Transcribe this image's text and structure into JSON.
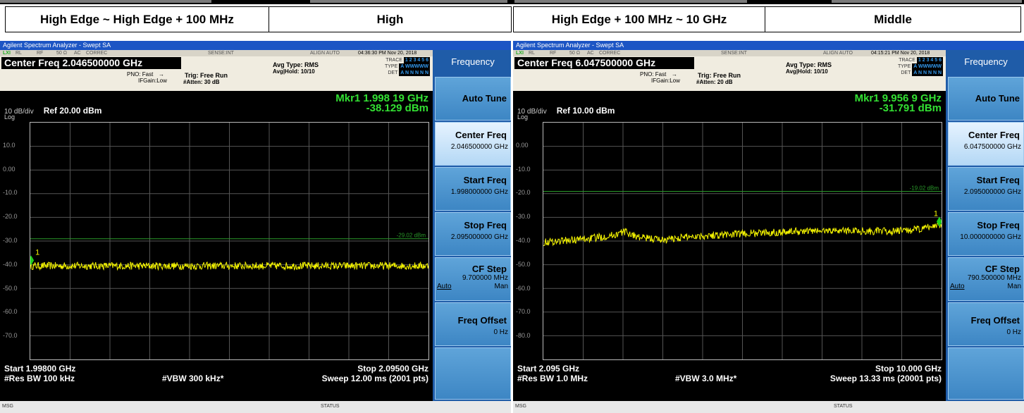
{
  "headers": {
    "left_range": "High Edge ~ High Edge + 100 MHz",
    "left_channel": "High",
    "right_range": "High Edge + 100 MHz ~ 10 GHz",
    "right_channel": "Middle"
  },
  "panels": [
    {
      "window_title": "Agilent Spectrum Analyzer - Swept SA",
      "top_row": {
        "rl": "RL",
        "rf": "RF",
        "ohm": "50 Ω",
        "ac": "AC",
        "correc": "CORREC",
        "sense": "SENSE:INT",
        "align": "ALIGN AUTO",
        "datetime": "04:36:30 PM Nov 20, 2018"
      },
      "center_freq": "Center Freq 2.046500000 GHz",
      "pno": "PNO: Fast",
      "ifgain": "IFGain:Low",
      "trig": "Trig: Free Run",
      "atten": "#Atten: 30 dB",
      "avg_type": "Avg Type: RMS",
      "avg_hold": "Avg|Hold: 10/10",
      "trace_row": {
        "trace": "TRACE",
        "type": "TYPE",
        "det": "DET",
        "trace_val": "1 2 3 4 5 6",
        "type_val": "A WWWWW",
        "det_val": "A N N N N N"
      },
      "marker_freq": "Mkr1 1.998 19 GHz",
      "marker_amp": "-38.129 dBm",
      "scale": "10 dB/div",
      "log": "Log",
      "ref": "Ref 20.00 dBm",
      "y_ticks": [
        "10.0",
        "0.00",
        "-10.0",
        "-20.0",
        "-30.0",
        "-40.0",
        "-50.0",
        "-60.0",
        "-70.0"
      ],
      "limit_label": "-29.02 dBm",
      "marker_num": "1",
      "start": "Start 1.99800 GHz",
      "stop": "Stop 2.09500 GHz",
      "rbw": "#Res BW 100 kHz",
      "vbw": "#VBW 300 kHz*",
      "sweep": "Sweep  12.00 ms (2001 pts)",
      "status_msg": "MSG",
      "status": "STATUS",
      "chart_data": {
        "type": "line",
        "xlabel": "",
        "ylabel": "",
        "x_range_ghz": [
          1.998,
          2.095
        ],
        "ylim": [
          -80,
          20
        ],
        "limit_line_dbm": -29.02,
        "marker": {
          "x_ghz": 1.99819,
          "y_dbm": -38.129
        },
        "trace_level_dbm": -40.5,
        "grid": true
      },
      "softkeys": {
        "menu": "Frequency",
        "auto_tune": "Auto Tune",
        "center_freq": "Center Freq",
        "center_freq_val": "2.046500000 GHz",
        "start_freq": "Start Freq",
        "start_freq_val": "1.998000000 GHz",
        "stop_freq": "Stop Freq",
        "stop_freq_val": "2.095000000 GHz",
        "cf_step": "CF Step",
        "cf_step_val": "9.700000 MHz",
        "auto": "Auto",
        "man": "Man",
        "freq_offset": "Freq Offset",
        "freq_offset_val": "0 Hz"
      }
    },
    {
      "window_title": "Agilent Spectrum Analyzer - Swept SA",
      "top_row": {
        "rl": "RL",
        "rf": "RF",
        "ohm": "50 Ω",
        "ac": "AC",
        "correc": "CORREC",
        "sense": "SENSE:INT",
        "align": "ALIGN AUTO",
        "datetime": "04:15:21 PM Nov 20, 2018"
      },
      "center_freq": "Center Freq 6.047500000 GHz",
      "pno": "PNO: Fast",
      "ifgain": "IFGain:Low",
      "trig": "Trig: Free Run",
      "atten": "#Atten: 20 dB",
      "avg_type": "Avg Type: RMS",
      "avg_hold": "Avg|Hold: 10/10",
      "trace_row": {
        "trace": "TRACE",
        "type": "TYPE",
        "det": "DET",
        "trace_val": "1 2 3 4 5 6",
        "type_val": "A WWWWW",
        "det_val": "A N N N N N"
      },
      "marker_freq": "Mkr1 9.956 9 GHz",
      "marker_amp": "-31.791 dBm",
      "scale": "10 dB/div",
      "log": "Log",
      "ref": "Ref 10.00 dBm",
      "y_ticks": [
        "0.00",
        "-10.0",
        "-20.0",
        "-30.0",
        "-40.0",
        "-50.0",
        "-60.0",
        "-70.0",
        "-80.0"
      ],
      "limit_label": "-19.02 dBm",
      "marker_num": "1",
      "start": "Start 2.095 GHz",
      "stop": "Stop 10.000 GHz",
      "rbw": "#Res BW 1.0 MHz",
      "vbw": "#VBW 3.0 MHz*",
      "sweep": "Sweep  13.33 ms (20001 pts)",
      "status_msg": "MSG",
      "status": "STATUS",
      "chart_data": {
        "type": "line",
        "xlabel": "",
        "ylabel": "",
        "x_range_ghz": [
          2.095,
          10.0
        ],
        "ylim": [
          -90,
          10
        ],
        "limit_line_dbm": -19.02,
        "marker": {
          "x_ghz": 9.9569,
          "y_dbm": -31.791
        },
        "trace_points": [
          [
            2.095,
            -40.5
          ],
          [
            3.0,
            -39
          ],
          [
            3.5,
            -37.5
          ],
          [
            3.7,
            -36
          ],
          [
            4.0,
            -38.5
          ],
          [
            4.5,
            -39.5
          ],
          [
            5.0,
            -38
          ],
          [
            6.0,
            -37
          ],
          [
            7.0,
            -36
          ],
          [
            8.0,
            -35.5
          ],
          [
            9.0,
            -36
          ],
          [
            9.6,
            -35
          ],
          [
            9.95,
            -33
          ]
        ],
        "grid": true
      },
      "softkeys": {
        "menu": "Frequency",
        "auto_tune": "Auto Tune",
        "center_freq": "Center Freq",
        "center_freq_val": "6.047500000 GHz",
        "start_freq": "Start Freq",
        "start_freq_val": "2.095000000 GHz",
        "stop_freq": "Stop Freq",
        "stop_freq_val": "10.000000000 GHz",
        "cf_step": "CF Step",
        "cf_step_val": "790.500000 MHz",
        "auto": "Auto",
        "man": "Man",
        "freq_offset": "Freq Offset",
        "freq_offset_val": "0 Hz"
      }
    }
  ]
}
